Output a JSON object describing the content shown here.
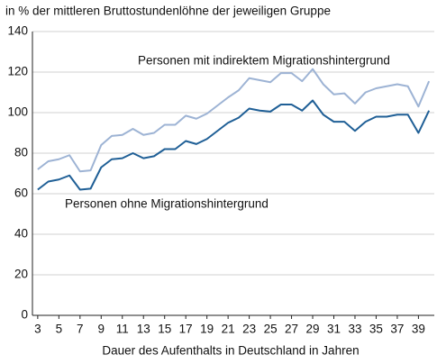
{
  "chart_data": {
    "type": "line",
    "title": "in % der mittleren Bruttostundenlöhne der jeweiligen Gruppe",
    "x_label": "Dauer des Aufenthalts in Deutschland in Jahren",
    "x": [
      3,
      4,
      5,
      6,
      7,
      8,
      9,
      10,
      11,
      12,
      13,
      14,
      15,
      16,
      17,
      18,
      19,
      20,
      21,
      22,
      23,
      24,
      25,
      26,
      27,
      28,
      29,
      30,
      31,
      32,
      33,
      34,
      35,
      36,
      37,
      38,
      39,
      40
    ],
    "series": [
      {
        "name": "Personen mit indirektem Migrationshintergrund",
        "color": "#9db3d4",
        "values": [
          72,
          76,
          77,
          79,
          71,
          71.5,
          84,
          88.5,
          89,
          92,
          89,
          90,
          94,
          94,
          98.5,
          97,
          99.5,
          103.5,
          107.5,
          111,
          117,
          116,
          115,
          119.5,
          119.5,
          115.5,
          121.5,
          114,
          109,
          109.5,
          104.5,
          110,
          112,
          113,
          114,
          113,
          103,
          115.5
        ]
      },
      {
        "name": "Personen ohne Migrationshintergrund",
        "color": "#1f5f96",
        "values": [
          62,
          66,
          67,
          69,
          62,
          62.5,
          73,
          77,
          77.5,
          80,
          77.5,
          78.5,
          82,
          82,
          86,
          84.5,
          87,
          91,
          95,
          97.5,
          102,
          101,
          100.5,
          104,
          104,
          101,
          106,
          99,
          95.5,
          95.5,
          91,
          95.5,
          98,
          98,
          99,
          99,
          90,
          101
        ]
      }
    ],
    "xlim": [
      2.5,
      40.5
    ],
    "xticks": [
      3,
      5,
      7,
      9,
      11,
      13,
      15,
      17,
      19,
      21,
      23,
      25,
      27,
      29,
      31,
      33,
      35,
      37,
      39
    ],
    "ylim": [
      0,
      140
    ],
    "yticks": [
      0,
      20,
      40,
      60,
      80,
      100,
      120,
      140
    ],
    "grid": true
  }
}
